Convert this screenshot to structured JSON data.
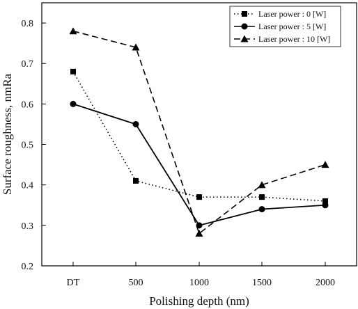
{
  "chart_data": {
    "type": "line",
    "categories": [
      "DT",
      "500",
      "1000",
      "1500",
      "2000"
    ],
    "series": [
      {
        "name": "Laser power : 0 [W]",
        "values": [
          0.68,
          0.41,
          0.37,
          0.37,
          0.36
        ],
        "marker": "square",
        "dash": "dotted"
      },
      {
        "name": "Laser power : 5 [W]",
        "values": [
          0.6,
          0.55,
          0.3,
          0.34,
          0.35
        ],
        "marker": "circle",
        "dash": "solid"
      },
      {
        "name": "Laser power : 10 [W]",
        "values": [
          0.78,
          0.74,
          0.28,
          0.4,
          0.45
        ],
        "marker": "triangle",
        "dash": "dashed"
      }
    ],
    "xlabel": "Polishing depth (nm)",
    "ylabel": "Surface roughness, nmRa",
    "ylim": [
      0.2,
      0.85
    ],
    "yticks": [
      "0.2",
      "0.3",
      "0.4",
      "0.5",
      "0.6",
      "0.7",
      "0.8"
    ],
    "grid": false,
    "legend_position": "top-right",
    "color": "#000000"
  }
}
